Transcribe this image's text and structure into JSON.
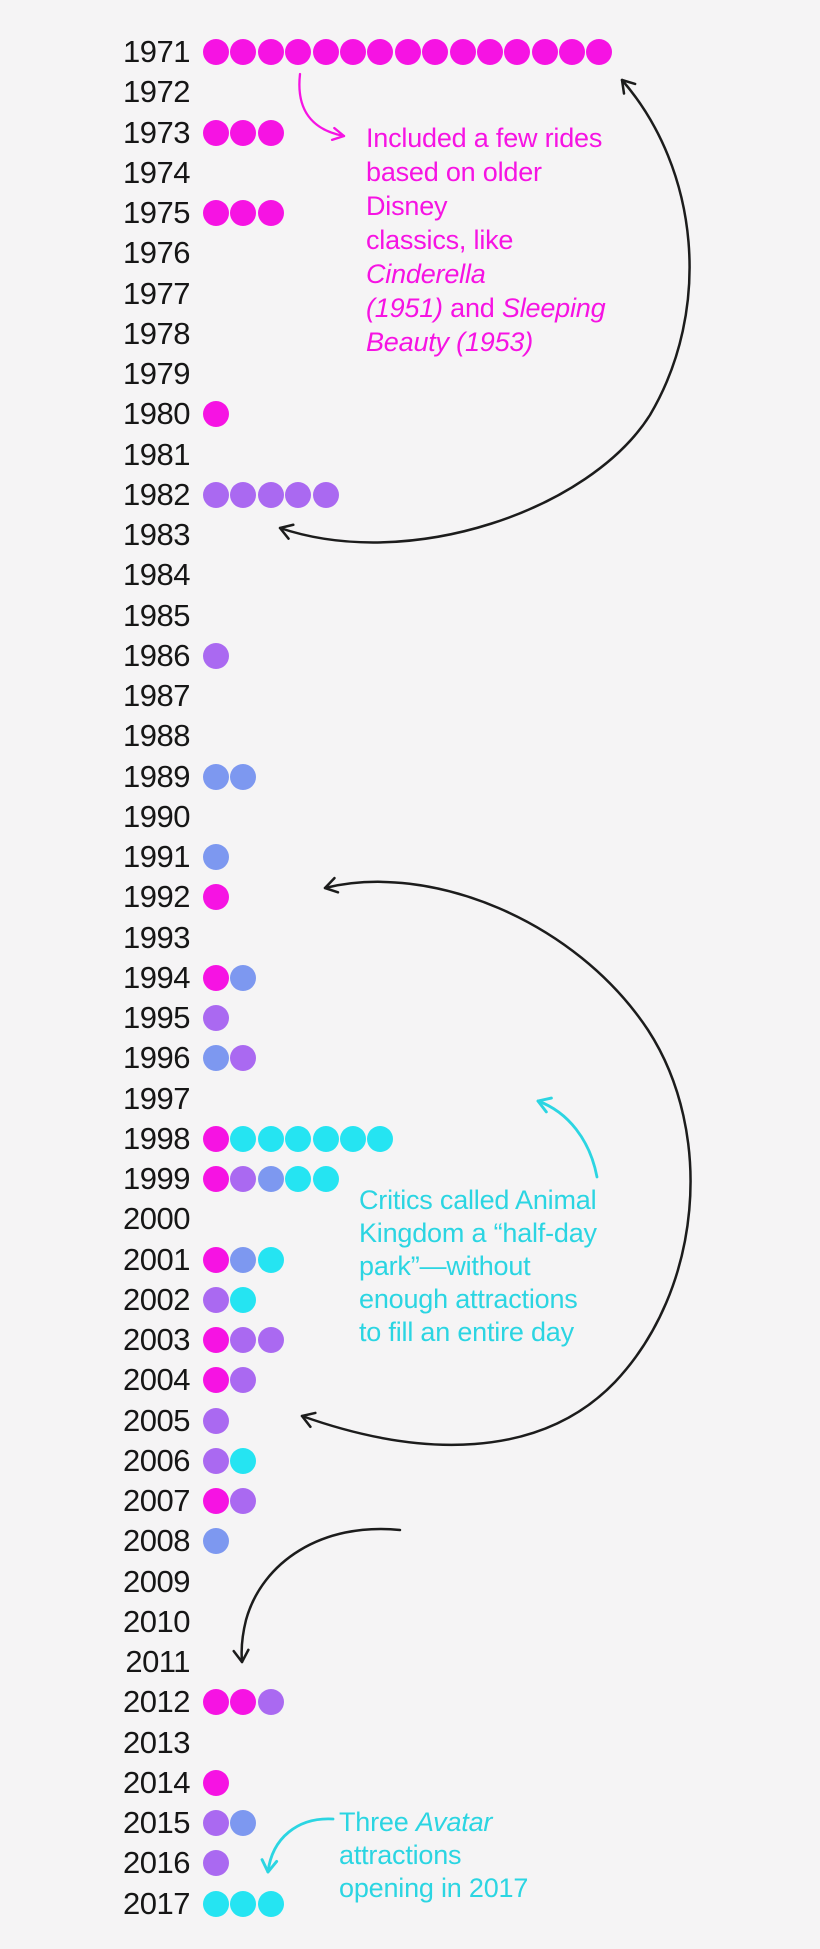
{
  "colors": {
    "background": "#f5f4f5",
    "label": "#161616",
    "arrow_black": "#1c1c1c",
    "magenta": "#f613e3",
    "purple": "#aa69f1",
    "blue": "#7d98f0",
    "cyan": "#25e4f2",
    "cyan_text": "#2bd5e2"
  },
  "chart_data": {
    "type": "scatter",
    "subtype": "dot-pictogram-timeline",
    "legend_position": "none",
    "grid": false,
    "dot_colors": {
      "magenta": "#f613e3",
      "purple": "#aa69f1",
      "blue": "#7d98f0",
      "cyan": "#25e4f2"
    },
    "years": [
      {
        "year": "1971",
        "dots": [
          "magenta",
          "magenta",
          "magenta",
          "magenta",
          "magenta",
          "magenta",
          "magenta",
          "magenta",
          "magenta",
          "magenta",
          "magenta",
          "magenta",
          "magenta",
          "magenta",
          "magenta"
        ]
      },
      {
        "year": "1972",
        "dots": []
      },
      {
        "year": "1973",
        "dots": [
          "magenta",
          "magenta",
          "magenta"
        ]
      },
      {
        "year": "1974",
        "dots": []
      },
      {
        "year": "1975",
        "dots": [
          "magenta",
          "magenta",
          "magenta"
        ]
      },
      {
        "year": "1976",
        "dots": []
      },
      {
        "year": "1977",
        "dots": []
      },
      {
        "year": "1978",
        "dots": []
      },
      {
        "year": "1979",
        "dots": []
      },
      {
        "year": "1980",
        "dots": [
          "magenta"
        ]
      },
      {
        "year": "1981",
        "dots": []
      },
      {
        "year": "1982",
        "dots": [
          "purple",
          "purple",
          "purple",
          "purple",
          "purple"
        ]
      },
      {
        "year": "1983",
        "dots": []
      },
      {
        "year": "1984",
        "dots": []
      },
      {
        "year": "1985",
        "dots": []
      },
      {
        "year": "1986",
        "dots": [
          "purple"
        ]
      },
      {
        "year": "1987",
        "dots": []
      },
      {
        "year": "1988",
        "dots": []
      },
      {
        "year": "1989",
        "dots": [
          "blue",
          "blue"
        ]
      },
      {
        "year": "1990",
        "dots": []
      },
      {
        "year": "1991",
        "dots": [
          "blue"
        ]
      },
      {
        "year": "1992",
        "dots": [
          "magenta"
        ]
      },
      {
        "year": "1993",
        "dots": []
      },
      {
        "year": "1994",
        "dots": [
          "magenta",
          "blue"
        ]
      },
      {
        "year": "1995",
        "dots": [
          "purple"
        ]
      },
      {
        "year": "1996",
        "dots": [
          "blue",
          "purple"
        ]
      },
      {
        "year": "1997",
        "dots": []
      },
      {
        "year": "1998",
        "dots": [
          "magenta",
          "cyan",
          "cyan",
          "cyan",
          "cyan",
          "cyan",
          "cyan"
        ]
      },
      {
        "year": "1999",
        "dots": [
          "magenta",
          "purple",
          "blue",
          "cyan",
          "cyan"
        ]
      },
      {
        "year": "2000",
        "dots": []
      },
      {
        "year": "2001",
        "dots": [
          "magenta",
          "blue",
          "cyan"
        ]
      },
      {
        "year": "2002",
        "dots": [
          "purple",
          "cyan"
        ]
      },
      {
        "year": "2003",
        "dots": [
          "magenta",
          "purple",
          "purple"
        ]
      },
      {
        "year": "2004",
        "dots": [
          "magenta",
          "purple"
        ]
      },
      {
        "year": "2005",
        "dots": [
          "purple"
        ]
      },
      {
        "year": "2006",
        "dots": [
          "purple",
          "cyan"
        ]
      },
      {
        "year": "2007",
        "dots": [
          "magenta",
          "purple"
        ]
      },
      {
        "year": "2008",
        "dots": [
          "blue"
        ]
      },
      {
        "year": "2009",
        "dots": []
      },
      {
        "year": "2010",
        "dots": []
      },
      {
        "year": "2011",
        "dots": []
      },
      {
        "year": "2012",
        "dots": [
          "magenta",
          "magenta",
          "purple"
        ]
      },
      {
        "year": "2013",
        "dots": []
      },
      {
        "year": "2014",
        "dots": [
          "magenta"
        ]
      },
      {
        "year": "2015",
        "dots": [
          "purple",
          "blue"
        ]
      },
      {
        "year": "2016",
        "dots": [
          "purple"
        ]
      },
      {
        "year": "2017",
        "dots": [
          "cyan",
          "cyan",
          "cyan"
        ]
      }
    ],
    "annotations_text": [
      "Included a few rides based on older Disney classics, like Cinderella (1951) and Sleeping Beauty (1953)",
      "Critics called Animal Kingdom a “half-day park”—without enough attractions to fill an entire day",
      "Three Avatar attractions opening in 2017"
    ]
  },
  "annotations": {
    "rides": {
      "lines": [
        [
          {
            "text": "Included a few rides"
          }
        ],
        [
          {
            "text": "based on older Disney"
          }
        ],
        [
          {
            "text": "classics, like "
          },
          {
            "text": "Cinderella",
            "italic": true
          }
        ],
        [
          {
            "text": "(1951)",
            "italic": true
          },
          {
            "text": " and "
          },
          {
            "text": "Sleeping",
            "italic": true
          }
        ],
        [
          {
            "text": "Beauty (1953)",
            "italic": true
          }
        ]
      ]
    },
    "half_day": {
      "lines": [
        [
          {
            "text": "Critics called Animal"
          }
        ],
        [
          {
            "text": "Kingdom a “half-day"
          }
        ],
        [
          {
            "text": "park”—without"
          }
        ],
        [
          {
            "text": "enough attractions"
          }
        ],
        [
          {
            "text": "to fill an entire day"
          }
        ]
      ]
    },
    "avatar": {
      "lines": [
        [
          {
            "text": "Three "
          },
          {
            "text": "Avatar",
            "italic": true
          }
        ],
        [
          {
            "text": "attractions"
          }
        ],
        [
          {
            "text": "opening in 2017"
          }
        ]
      ]
    }
  }
}
